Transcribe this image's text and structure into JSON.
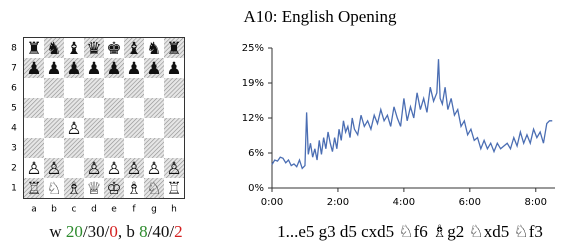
{
  "title": "A10: English Opening",
  "board": {
    "ranks": [
      [
        "♜",
        "♞",
        "♝",
        "♛",
        "♚",
        "♝",
        "♞",
        "♜"
      ],
      [
        "♟",
        "♟",
        "♟",
        "♟",
        "♟",
        "♟",
        "♟",
        "♟"
      ],
      [
        null,
        null,
        null,
        null,
        null,
        null,
        null,
        null
      ],
      [
        null,
        null,
        null,
        null,
        null,
        null,
        null,
        null
      ],
      [
        null,
        null,
        "♙",
        null,
        null,
        null,
        null,
        null
      ],
      [
        null,
        null,
        null,
        null,
        null,
        null,
        null,
        null
      ],
      [
        "♙",
        "♙",
        null,
        "♙",
        "♙",
        "♙",
        "♙",
        "♙"
      ],
      [
        "♖",
        "♘",
        "♗",
        "♕",
        "♔",
        "♗",
        "♘",
        "♖"
      ]
    ],
    "rank_labels": [
      "8",
      "7",
      "6",
      "5",
      "4",
      "3",
      "2",
      "1"
    ],
    "file_labels": [
      "a",
      "b",
      "c",
      "d",
      "e",
      "f",
      "g",
      "h"
    ]
  },
  "stats": {
    "sides": [
      {
        "side": "w",
        "won": 20,
        "drawn": 30,
        "lost": 0
      },
      {
        "side": "b",
        "won": 8,
        "drawn": 40,
        "lost": 2
      }
    ],
    "separator": "/",
    "joiner": ", "
  },
  "moves": "1...e5 g3 d5 cxd5 ♘f6 ♗g2 ♘xd5 ♘f3",
  "chart_data": {
    "type": "line",
    "color": "#4b6eb3",
    "x": [
      0,
      5,
      10,
      15,
      20,
      25,
      30,
      35,
      40,
      45,
      50,
      55,
      60,
      63,
      66,
      70,
      74,
      78,
      82,
      86,
      90,
      94,
      98,
      102,
      106,
      110,
      114,
      118,
      122,
      126,
      130,
      134,
      138,
      142,
      146,
      150,
      156,
      162,
      168,
      174,
      180,
      186,
      192,
      198,
      204,
      210,
      216,
      222,
      228,
      234,
      240,
      246,
      252,
      258,
      264,
      270,
      276,
      282,
      288,
      294,
      300,
      303,
      306,
      310,
      315,
      320,
      326,
      332,
      338,
      344,
      350,
      356,
      362,
      368,
      374,
      380,
      386,
      392,
      398,
      404,
      410,
      416,
      422,
      428,
      434,
      440,
      446,
      452,
      458,
      464,
      470,
      476,
      482,
      488,
      494,
      500,
      505,
      510
    ],
    "values": [
      4.2,
      5,
      4.8,
      5.5,
      5.3,
      4.5,
      5,
      4,
      4.3,
      3.8,
      5,
      3.5,
      4,
      13.5,
      6,
      8,
      5.5,
      7,
      5,
      8.5,
      6,
      9,
      7,
      10,
      8,
      6.5,
      9,
      7,
      10.5,
      8.5,
      12,
      10,
      11,
      9,
      12.5,
      10.5,
      9.5,
      13,
      11,
      12,
      10.5,
      13,
      11.5,
      14,
      12,
      13,
      11,
      14.5,
      12.5,
      11,
      16,
      12,
      14.5,
      12.5,
      17,
      14,
      16,
      13.5,
      18,
      15.5,
      17,
      23,
      16,
      15,
      18,
      14,
      16,
      13,
      14,
      11,
      12,
      9.5,
      10.5,
      8.5,
      9,
      7,
      8.5,
      7,
      8,
      6.5,
      8,
      7,
      7.5,
      8,
      7,
      9,
      7.5,
      10,
      8,
      9.5,
      8,
      10.5,
      9,
      10,
      8,
      11.5,
      12,
      12
    ],
    "xlim": [
      0,
      515
    ],
    "xticks": [
      {
        "value": 0,
        "label": "0:00"
      },
      {
        "value": 120,
        "label": "2:00"
      },
      {
        "value": 240,
        "label": "4:00"
      },
      {
        "value": 360,
        "label": "6:00"
      },
      {
        "value": 480,
        "label": "8:00"
      }
    ],
    "ylim": [
      0,
      25
    ],
    "yticks": [
      {
        "value": 0,
        "label": "0%"
      },
      {
        "value": 6.25,
        "label": "6%"
      },
      {
        "value": 12.5,
        "label": "12%"
      },
      {
        "value": 18.75,
        "label": "19%"
      },
      {
        "value": 25,
        "label": "25%"
      }
    ]
  }
}
